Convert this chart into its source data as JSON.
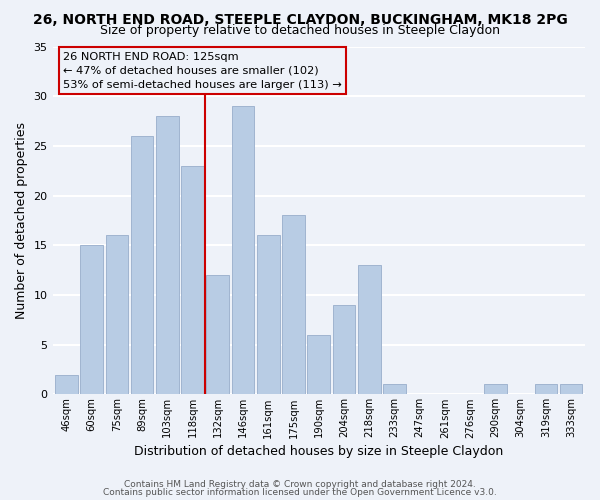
{
  "title1": "26, NORTH END ROAD, STEEPLE CLAYDON, BUCKINGHAM, MK18 2PG",
  "title2": "Size of property relative to detached houses in Steeple Claydon",
  "xlabel": "Distribution of detached houses by size in Steeple Claydon",
  "ylabel": "Number of detached properties",
  "bar_labels": [
    "46sqm",
    "60sqm",
    "75sqm",
    "89sqm",
    "103sqm",
    "118sqm",
    "132sqm",
    "146sqm",
    "161sqm",
    "175sqm",
    "190sqm",
    "204sqm",
    "218sqm",
    "233sqm",
    "247sqm",
    "261sqm",
    "276sqm",
    "290sqm",
    "304sqm",
    "319sqm",
    "333sqm"
  ],
  "bar_values": [
    2,
    15,
    16,
    26,
    28,
    23,
    12,
    29,
    16,
    18,
    6,
    9,
    13,
    1,
    0,
    0,
    0,
    1,
    0,
    1,
    1
  ],
  "bar_color": "#b8cce4",
  "bar_edge_color": "#a0b4d0",
  "vline_x": 5.5,
  "vline_color": "#cc0000",
  "annotation_line1": "26 NORTH END ROAD: 125sqm",
  "annotation_line2": "← 47% of detached houses are smaller (102)",
  "annotation_line3": "53% of semi-detached houses are larger (113) →",
  "annotation_box_edge": "#cc0000",
  "ylim": [
    0,
    35
  ],
  "yticks": [
    0,
    5,
    10,
    15,
    20,
    25,
    30,
    35
  ],
  "footer1": "Contains HM Land Registry data © Crown copyright and database right 2024.",
  "footer2": "Contains public sector information licensed under the Open Government Licence v3.0.",
  "bg_color": "#eef2f9",
  "grid_color": "#ffffff"
}
